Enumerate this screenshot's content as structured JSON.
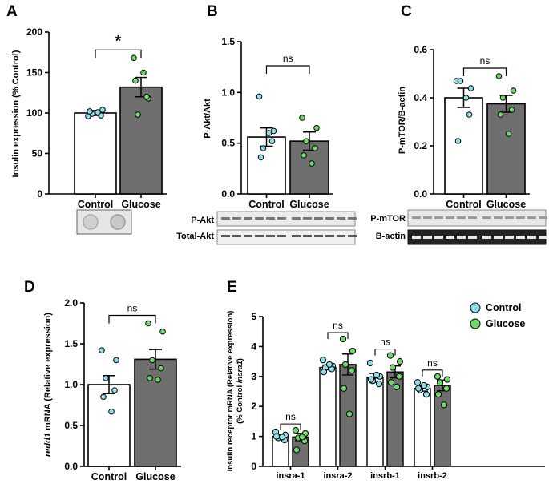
{
  "chart_data": [
    {
      "type": "bar",
      "panel_label": "A",
      "categories": [
        "Control",
        "Glucose"
      ],
      "values": [
        100,
        132
      ],
      "sem": [
        3,
        12
      ],
      "points": [
        [
          96,
          104,
          99,
          97,
          102,
          101
        ],
        [
          168,
          118,
          98,
          120,
          140,
          150
        ]
      ],
      "ylabel": "Insulin expression (% Control)",
      "ylim": [
        0,
        200
      ],
      "yticks": [
        "0",
        "50",
        "100",
        "150",
        "200"
      ],
      "significance": "*",
      "blot_image": true
    },
    {
      "type": "bar",
      "panel_label": "B",
      "categories": [
        "Control",
        "Glucose"
      ],
      "values": [
        0.56,
        0.52
      ],
      "sem": [
        0.09,
        0.09
      ],
      "points": [
        [
          0.96,
          0.62,
          0.45,
          0.52,
          0.36,
          0.6
        ],
        [
          0.75,
          0.65,
          0.52,
          0.45,
          0.38,
          0.3
        ]
      ],
      "ylabel": "P-Akt/Akt",
      "ylim": [
        0,
        1.5
      ],
      "yticks": [
        "0.0",
        "0.5",
        "1.0",
        "1.5"
      ],
      "significance": "ns",
      "blot_labels": [
        "P-Akt",
        "Total-Akt"
      ]
    },
    {
      "type": "bar",
      "panel_label": "C",
      "categories": [
        "Control",
        "Glucose"
      ],
      "values": [
        0.4,
        0.375
      ],
      "sem": [
        0.04,
        0.035
      ],
      "points": [
        [
          0.47,
          0.44,
          0.47,
          0.33,
          0.22,
          0.4
        ],
        [
          0.49,
          0.43,
          0.4,
          0.35,
          0.33,
          0.25
        ]
      ],
      "ylabel": "P-mTOR/B-actin",
      "ylim": [
        0,
        0.6
      ],
      "yticks": [
        "0.0",
        "0.2",
        "0.4",
        "0.6"
      ],
      "significance": "ns",
      "blot_labels": [
        "P-mTOR",
        "B-actin"
      ]
    },
    {
      "type": "bar",
      "panel_label": "D",
      "categories": [
        "Control",
        "Glucose"
      ],
      "values": [
        1.0,
        1.31
      ],
      "sem": [
        0.11,
        0.12
      ],
      "points": [
        [
          1.42,
          1.3,
          1.08,
          0.93,
          0.85,
          0.67
        ],
        [
          1.75,
          1.65,
          1.3,
          1.2,
          1.08,
          1.06
        ]
      ],
      "ylabel_italic": "redd1",
      "ylabel": " mRNA (Relative expression)",
      "ylim": [
        0,
        2.0
      ],
      "yticks": [
        "0.0",
        "0.5",
        "1.0",
        "1.5",
        "2.0"
      ],
      "significance": "ns"
    },
    {
      "type": "bar",
      "panel_label": "E",
      "categories": [
        "insra-1",
        "insra-2",
        "insrb-1",
        "insrb-2"
      ],
      "series": [
        {
          "name": "Control",
          "values": [
            1.0,
            3.3,
            2.95,
            2.6
          ],
          "sem": [
            0.07,
            0.08,
            0.15,
            0.09
          ],
          "points": [
            [
              1.15,
              1.05,
              0.95,
              0.88,
              1.0,
              0.98
            ],
            [
              3.55,
              3.35,
              3.3,
              3.25,
              3.15,
              3.4
            ],
            [
              3.45,
              3.0,
              2.85,
              2.75,
              2.9,
              3.05
            ],
            [
              2.8,
              2.65,
              2.55,
              2.4,
              2.6,
              2.7
            ]
          ]
        },
        {
          "name": "Glucose",
          "values": [
            0.98,
            3.4,
            3.15,
            2.7
          ],
          "sem": [
            0.12,
            0.35,
            0.2,
            0.18
          ],
          "points": [
            [
              1.2,
              1.1,
              0.95,
              0.85,
              0.55,
              0.98
            ],
            [
              4.25,
              3.85,
              3.4,
              3.2,
              2.6,
              1.75
            ],
            [
              3.7,
              3.5,
              3.3,
              3.0,
              2.8,
              2.65
            ],
            [
              3.0,
              2.9,
              2.8,
              2.6,
              2.4,
              2.05
            ]
          ]
        }
      ],
      "ylabel": "Insulin receptor mRNA (Relative expression)",
      "ylabel2_prefix": "(% Control ",
      "ylabel2_italic": "insra1",
      "ylabel2_suffix": ")",
      "ylim": [
        0,
        5
      ],
      "yticks": [
        "0",
        "1",
        "2",
        "3",
        "4",
        "5"
      ],
      "significance": [
        "ns",
        "ns",
        "ns",
        "ns"
      ],
      "legend_position": "top-right"
    }
  ],
  "colors": {
    "control_fill": "#ffffff",
    "glucose_fill": "#6e6e6e",
    "control_point": "#8fdde8",
    "glucose_point": "#6fd86a",
    "axis": "#000000"
  }
}
